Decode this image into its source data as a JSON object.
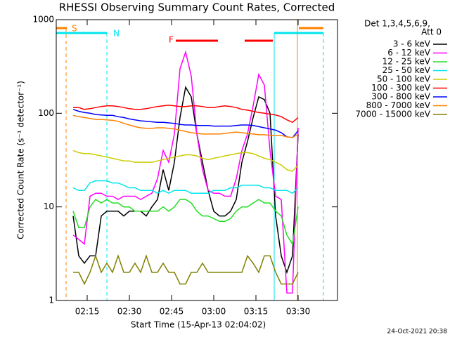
{
  "chart_data": {
    "type": "line",
    "title": "RHESSI Observing Summary Count Rates, Corrected",
    "y_label": "Corrected Count Rate (s⁻¹ detector⁻¹)",
    "x_label": "Start Time (15-Apr-13 02:04:02)",
    "legend_title": [
      "Det 1,3,4,5,6,9,",
      "Att 0"
    ],
    "footer": "24-Oct-2021 20:38",
    "annotations": [
      "S",
      "N",
      "F"
    ],
    "log_y": true,
    "xlim": [
      124,
      224
    ],
    "ylim": [
      1,
      1000
    ],
    "xticks": [
      {
        "value": 135,
        "label": "02:15"
      },
      {
        "value": 150,
        "label": "02:30"
      },
      {
        "value": 165,
        "label": "02:45"
      },
      {
        "value": 180,
        "label": "03:00"
      },
      {
        "value": 195,
        "label": "03:15"
      },
      {
        "value": 210,
        "label": "03:30"
      }
    ],
    "yticks": [
      1,
      10,
      100,
      1000
    ],
    "x": [
      130,
      132,
      134,
      136,
      138,
      140,
      142,
      144,
      146,
      148,
      150,
      152,
      154,
      156,
      158,
      160,
      162,
      164,
      166,
      168,
      170,
      172,
      174,
      176,
      178,
      180,
      182,
      184,
      186,
      188,
      190,
      192,
      194,
      196,
      198,
      200,
      202,
      204,
      206,
      208,
      210
    ],
    "series": [
      {
        "name": "3 - 6 keV",
        "color": "#000000",
        "values": [
          8,
          3,
          2.5,
          3,
          3,
          8,
          9,
          9,
          9,
          8,
          9,
          9,
          9,
          8,
          10,
          12,
          25,
          15,
          30,
          90,
          190,
          150,
          60,
          30,
          15,
          9,
          8,
          8,
          9,
          12,
          30,
          50,
          90,
          150,
          140,
          100,
          8,
          3,
          2,
          3,
          60
        ]
      },
      {
        "name": "6 - 12 keV",
        "color": "#ff00ff",
        "values": [
          5,
          4.5,
          4,
          13,
          14,
          14,
          13,
          13,
          12,
          13,
          13,
          13,
          12,
          13,
          14,
          20,
          40,
          30,
          60,
          300,
          450,
          250,
          60,
          25,
          15,
          14,
          14,
          13,
          13,
          20,
          40,
          60,
          120,
          260,
          200,
          40,
          13,
          12,
          1.2,
          1.2,
          70
        ]
      },
      {
        "name": "12 - 25 keV",
        "color": "#22dd22",
        "values": [
          9,
          6,
          6,
          10,
          12,
          11,
          12,
          11,
          11,
          10,
          10,
          9,
          9,
          9,
          9,
          9,
          10,
          9,
          10,
          12,
          12,
          11,
          9,
          8,
          8,
          7.5,
          7,
          7,
          7.5,
          9,
          10,
          10,
          11,
          12,
          11,
          11,
          9,
          8,
          5,
          4,
          10
        ]
      },
      {
        "name": "25 - 50 keV",
        "color": "#00e5ee",
        "values": [
          16,
          15,
          15,
          18,
          19,
          19,
          19,
          18,
          18,
          17,
          16,
          16,
          15,
          15,
          15,
          14,
          15,
          14,
          15,
          15,
          15,
          14,
          14,
          14,
          14,
          15,
          15,
          15,
          16,
          16,
          17,
          17,
          17,
          17,
          16,
          16,
          15,
          15,
          15,
          14,
          16
        ]
      },
      {
        "name": "50 - 100 keV",
        "color": "#cccc00",
        "values": [
          40,
          38,
          37,
          37,
          36,
          35,
          34,
          33,
          32,
          31,
          31,
          30,
          30,
          30,
          30,
          31,
          32,
          33,
          34,
          35,
          36,
          36,
          35,
          33,
          32,
          33,
          34,
          35,
          36,
          37,
          38,
          38,
          37,
          35,
          33,
          32,
          30,
          28,
          25,
          24,
          28
        ]
      },
      {
        "name": "100 - 300 keV",
        "color": "#ff0000",
        "values": [
          115,
          115,
          110,
          112,
          115,
          118,
          120,
          120,
          118,
          115,
          112,
          110,
          110,
          112,
          115,
          118,
          120,
          122,
          120,
          118,
          118,
          120,
          120,
          118,
          115,
          115,
          118,
          120,
          118,
          115,
          110,
          108,
          105,
          102,
          100,
          98,
          96,
          92,
          85,
          80,
          90
        ]
      },
      {
        "name": "300 - 800 keV",
        "color": "#0000ff",
        "values": [
          110,
          105,
          102,
          100,
          97,
          96,
          95,
          95,
          92,
          90,
          87,
          85,
          83,
          82,
          81,
          80,
          80,
          79,
          78,
          76,
          75,
          75,
          74,
          74,
          74,
          73,
          73,
          73,
          73,
          74,
          75,
          75,
          74,
          72,
          70,
          68,
          66,
          62,
          56,
          55,
          65
        ]
      },
      {
        "name": "800 - 7000 keV",
        "color": "#ff8000",
        "values": [
          95,
          92,
          90,
          88,
          86,
          86,
          85,
          84,
          82,
          78,
          75,
          72,
          70,
          69,
          69,
          70,
          70,
          69,
          68,
          66,
          64,
          62,
          61,
          60,
          60,
          60,
          60,
          61,
          62,
          63,
          62,
          61,
          60,
          59,
          59,
          58,
          58,
          58,
          56,
          55,
          60
        ]
      },
      {
        "name": "7000 - 15000 keV",
        "color": "#808000",
        "values": [
          2,
          2,
          1.5,
          2,
          3,
          2,
          2.5,
          2,
          3,
          2,
          2,
          2.5,
          2,
          3,
          2,
          2,
          2.5,
          2,
          2,
          1.5,
          1.5,
          2,
          2,
          2.5,
          2,
          2,
          2,
          2,
          2,
          2,
          2,
          3,
          2.5,
          2,
          3,
          3,
          2,
          1.5,
          1.5,
          1.5,
          2
        ]
      }
    ]
  }
}
